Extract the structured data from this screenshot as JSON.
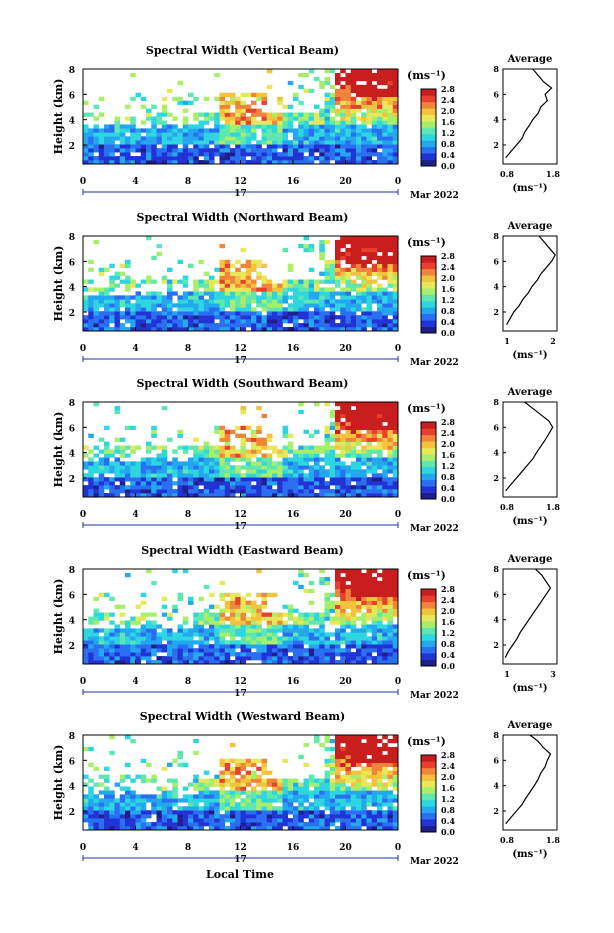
{
  "figure": {
    "panel_x_ticks": [
      "0",
      "4",
      "8",
      "12",
      "16",
      "20",
      "0"
    ],
    "panel_y_ticks": [
      "2",
      "4",
      "6",
      "8"
    ],
    "y_label": "Height (km)",
    "day_label": "17",
    "month_label": "Mar 2022",
    "unit_label": "(ms⁻¹)",
    "colorbar_ticks": [
      "2.8",
      "2.4",
      "2.0",
      "1.6",
      "1.2",
      "0.8",
      "0.4",
      "0.0"
    ],
    "average_title": "Average",
    "average_unit_label": "(ms⁻¹)",
    "x_axis_label": "Local Time",
    "colors": {
      "colormap": [
        "#1e1e8c",
        "#2233d6",
        "#2a6ff2",
        "#23a8f0",
        "#2ed6e0",
        "#5ee8b0",
        "#a8ee6a",
        "#e6e85a",
        "#f4c23c",
        "#f0843a",
        "#e8402c",
        "#c81e1e"
      ]
    }
  },
  "chart_data": [
    {
      "type": "heatmap",
      "title": "Spectral Width (Vertical Beam)",
      "xlabel": "",
      "ylabel": "Height (km)",
      "xlim": [
        0,
        24
      ],
      "ylim": [
        0.5,
        8
      ],
      "x_ticks": [
        "0",
        "4",
        "8",
        "12",
        "16",
        "20",
        "0"
      ],
      "colorbar": {
        "label": "(ms⁻¹)",
        "range": [
          0,
          2.8
        ],
        "ticks": [
          0.0,
          0.4,
          0.8,
          1.2,
          1.6,
          2.0,
          2.4,
          2.8
        ]
      },
      "average_profile": {
        "title": "Average",
        "xlabel": "(ms⁻¹)",
        "xlim": [
          0.8,
          1.8
        ],
        "x_ticks": [
          "0.8",
          "1.8"
        ],
        "ylim": [
          0.5,
          8
        ],
        "points": [
          [
            0.85,
            1.0
          ],
          [
            0.95,
            1.5
          ],
          [
            1.05,
            2.0
          ],
          [
            1.15,
            2.5
          ],
          [
            1.2,
            3.0
          ],
          [
            1.28,
            3.5
          ],
          [
            1.35,
            4.0
          ],
          [
            1.45,
            4.5
          ],
          [
            1.5,
            5.0
          ],
          [
            1.62,
            5.5
          ],
          [
            1.58,
            6.0
          ],
          [
            1.7,
            6.5
          ],
          [
            1.55,
            7.0
          ],
          [
            1.45,
            7.5
          ],
          [
            1.35,
            8.0
          ]
        ]
      }
    },
    {
      "type": "heatmap",
      "title": "Spectral Width (Northward Beam)",
      "xlabel": "",
      "ylabel": "Height (km)",
      "xlim": [
        0,
        24
      ],
      "ylim": [
        0.5,
        8
      ],
      "x_ticks": [
        "0",
        "4",
        "8",
        "12",
        "16",
        "20",
        "0"
      ],
      "colorbar": {
        "label": "(ms⁻¹)",
        "range": [
          0,
          2.8
        ],
        "ticks": [
          0.0,
          0.4,
          0.8,
          1.2,
          1.6,
          2.0,
          2.4,
          2.8
        ]
      },
      "average_profile": {
        "title": "Average",
        "xlabel": "(ms⁻¹)",
        "xlim": [
          0.8,
          2.3
        ],
        "x_ticks": [
          "1",
          "2"
        ],
        "ylim": [
          0.5,
          8
        ],
        "points": [
          [
            0.9,
            1.0
          ],
          [
            1.0,
            1.5
          ],
          [
            1.1,
            2.0
          ],
          [
            1.25,
            2.5
          ],
          [
            1.35,
            3.0
          ],
          [
            1.5,
            3.5
          ],
          [
            1.6,
            4.0
          ],
          [
            1.75,
            4.5
          ],
          [
            1.85,
            5.0
          ],
          [
            2.0,
            5.5
          ],
          [
            2.15,
            6.0
          ],
          [
            2.25,
            6.5
          ],
          [
            2.1,
            7.0
          ],
          [
            1.95,
            7.5
          ],
          [
            1.8,
            8.0
          ]
        ]
      }
    },
    {
      "type": "heatmap",
      "title": "Spectral Width (Southward Beam)",
      "xlabel": "",
      "ylabel": "Height (km)",
      "xlim": [
        0,
        24
      ],
      "ylim": [
        0.5,
        8
      ],
      "x_ticks": [
        "0",
        "4",
        "8",
        "12",
        "16",
        "20",
        "0"
      ],
      "colorbar": {
        "label": "(ms⁻¹)",
        "range": [
          0,
          2.8
        ],
        "ticks": [
          0.0,
          0.4,
          0.8,
          1.2,
          1.6,
          2.0,
          2.4,
          2.8
        ]
      },
      "average_profile": {
        "title": "Average",
        "xlabel": "(ms⁻¹)",
        "xlim": [
          0.8,
          1.8
        ],
        "x_ticks": [
          "0.8",
          "1.8"
        ],
        "ylim": [
          0.5,
          8
        ],
        "points": [
          [
            0.85,
            1.0
          ],
          [
            0.95,
            1.5
          ],
          [
            1.05,
            2.0
          ],
          [
            1.15,
            2.5
          ],
          [
            1.25,
            3.0
          ],
          [
            1.35,
            3.5
          ],
          [
            1.42,
            4.0
          ],
          [
            1.5,
            4.5
          ],
          [
            1.58,
            5.0
          ],
          [
            1.65,
            5.5
          ],
          [
            1.72,
            6.0
          ],
          [
            1.65,
            6.5
          ],
          [
            1.5,
            7.0
          ],
          [
            1.35,
            7.5
          ],
          [
            1.2,
            8.0
          ]
        ]
      }
    },
    {
      "type": "heatmap",
      "title": "Spectral Width (Eastward Beam)",
      "xlabel": "",
      "ylabel": "Height (km)",
      "xlim": [
        0,
        24
      ],
      "ylim": [
        0.5,
        8
      ],
      "x_ticks": [
        "0",
        "4",
        "8",
        "12",
        "16",
        "20",
        "0"
      ],
      "colorbar": {
        "label": "(ms⁻¹)",
        "range": [
          0,
          2.8
        ],
        "ticks": [
          0.0,
          0.4,
          0.8,
          1.2,
          1.6,
          2.0,
          2.4,
          2.8
        ]
      },
      "average_profile": {
        "title": "Average",
        "xlabel": "(ms⁻¹)",
        "xlim": [
          0.8,
          3.3
        ],
        "x_ticks": [
          "1",
          "3"
        ],
        "ylim": [
          0.5,
          8
        ],
        "points": [
          [
            0.9,
            1.0
          ],
          [
            1.05,
            1.5
          ],
          [
            1.25,
            2.0
          ],
          [
            1.45,
            2.5
          ],
          [
            1.6,
            3.0
          ],
          [
            1.8,
            3.5
          ],
          [
            2.0,
            4.0
          ],
          [
            2.2,
            4.5
          ],
          [
            2.4,
            5.0
          ],
          [
            2.6,
            5.5
          ],
          [
            2.8,
            6.0
          ],
          [
            3.0,
            6.5
          ],
          [
            2.8,
            7.0
          ],
          [
            2.6,
            7.5
          ],
          [
            2.3,
            8.0
          ]
        ]
      }
    },
    {
      "type": "heatmap",
      "title": "Spectral Width (Westward Beam)",
      "xlabel": "Local Time",
      "ylabel": "Height (km)",
      "xlim": [
        0,
        24
      ],
      "ylim": [
        0.5,
        8
      ],
      "x_ticks": [
        "0",
        "4",
        "8",
        "12",
        "16",
        "20",
        "0"
      ],
      "colorbar": {
        "label": "(ms⁻¹)",
        "range": [
          0,
          2.8
        ],
        "ticks": [
          0.0,
          0.4,
          0.8,
          1.2,
          1.6,
          2.0,
          2.4,
          2.8
        ]
      },
      "average_profile": {
        "title": "Average",
        "xlabel": "(ms⁻¹)",
        "xlim": [
          0.8,
          1.8
        ],
        "x_ticks": [
          "0.8",
          "1.8"
        ],
        "ylim": [
          0.5,
          8
        ],
        "points": [
          [
            0.85,
            1.0
          ],
          [
            0.95,
            1.5
          ],
          [
            1.05,
            2.0
          ],
          [
            1.15,
            2.5
          ],
          [
            1.22,
            3.0
          ],
          [
            1.3,
            3.5
          ],
          [
            1.38,
            4.0
          ],
          [
            1.45,
            4.5
          ],
          [
            1.5,
            5.0
          ],
          [
            1.58,
            5.5
          ],
          [
            1.62,
            6.0
          ],
          [
            1.68,
            6.5
          ],
          [
            1.55,
            7.0
          ],
          [
            1.45,
            7.5
          ],
          [
            1.3,
            8.0
          ]
        ]
      }
    }
  ]
}
